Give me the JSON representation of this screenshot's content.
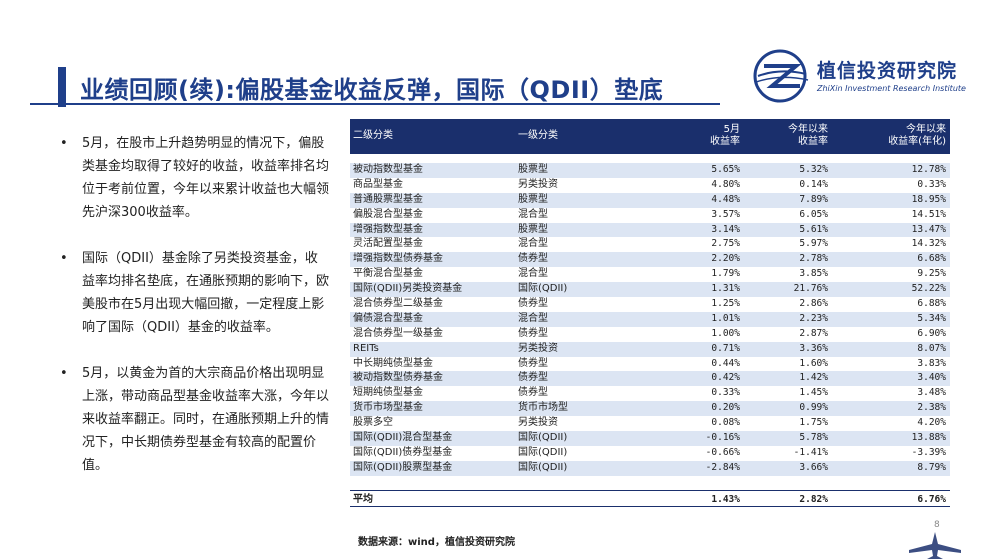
{
  "header": {
    "title": "业绩回顾(续):偏股基金收益反弹，国际（QDII）垫底"
  },
  "logo": {
    "name": "植信投资研究院",
    "subtitle": "ZhiXin Investment Research Institute",
    "icon": "zhixin-logo-icon"
  },
  "bullets": [
    "5月，在股市上升趋势明显的情况下，偏股类基金均取得了较好的收益，收益率排名均位于考前位置，今年以来累计收益也大幅领先沪深300收益率。",
    "国际（QDII）基金除了另类投资基金，收益率均排名垫底，在通胀预期的影响下，欧美股市在5月出现大幅回撤，一定程度上影响了国际（QDII）基金的收益率。",
    "5月，以黄金为首的大宗商品价格出现明显上涨，带动商品型基金收益率大涨，今年以来收益率翻正。同时，在通胀预期上升的情况下，中长期债券型基金有较高的配置价值。"
  ],
  "table": {
    "headers": {
      "col1": "二级分类",
      "col2": "一级分类",
      "col3_line1": "5月",
      "col3_line2": "收益率",
      "col4_line1": "今年以来",
      "col4_line2": "收益率",
      "col5_line1": "今年以来",
      "col5_line2": "收益率(年化)"
    },
    "rows": [
      [
        "被动指数型基金",
        "股票型",
        "5.65%",
        "5.32%",
        "12.78%"
      ],
      [
        "商品型基金",
        "另类投资",
        "4.80%",
        "0.14%",
        "0.33%"
      ],
      [
        "普通股票型基金",
        "股票型",
        "4.48%",
        "7.89%",
        "18.95%"
      ],
      [
        "偏股混合型基金",
        "混合型",
        "3.57%",
        "6.05%",
        "14.51%"
      ],
      [
        "增强指数型基金",
        "股票型",
        "3.14%",
        "5.61%",
        "13.47%"
      ],
      [
        "灵活配置型基金",
        "混合型",
        "2.75%",
        "5.97%",
        "14.32%"
      ],
      [
        "增强指数型债券基金",
        "债券型",
        "2.20%",
        "2.78%",
        "6.68%"
      ],
      [
        "平衡混合型基金",
        "混合型",
        "1.79%",
        "3.85%",
        "9.25%"
      ],
      [
        "国际(QDII)另类投资基金",
        "国际(QDII)",
        "1.31%",
        "21.76%",
        "52.22%"
      ],
      [
        "混合债券型二级基金",
        "债券型",
        "1.25%",
        "2.86%",
        "6.88%"
      ],
      [
        "偏债混合型基金",
        "混合型",
        "1.01%",
        "2.23%",
        "5.34%"
      ],
      [
        "混合债券型一级基金",
        "债券型",
        "1.00%",
        "2.87%",
        "6.90%"
      ],
      [
        "REITs",
        "另类投资",
        "0.71%",
        "3.36%",
        "8.07%"
      ],
      [
        "中长期纯债型基金",
        "债券型",
        "0.44%",
        "1.60%",
        "3.83%"
      ],
      [
        "被动指数型债券基金",
        "债券型",
        "0.42%",
        "1.42%",
        "3.40%"
      ],
      [
        "短期纯债型基金",
        "债券型",
        "0.33%",
        "1.45%",
        "3.48%"
      ],
      [
        "货币市场型基金",
        "货币市场型",
        "0.20%",
        "0.99%",
        "2.38%"
      ],
      [
        "股票多空",
        "另类投资",
        "0.08%",
        "1.75%",
        "4.20%"
      ],
      [
        "国际(QDII)混合型基金",
        "国际(QDII)",
        "-0.16%",
        "5.78%",
        "13.88%"
      ],
      [
        "国际(QDII)债券型基金",
        "国际(QDII)",
        "-0.66%",
        "-1.41%",
        "-3.39%"
      ],
      [
        "国际(QDII)股票型基金",
        "国际(QDII)",
        "-2.84%",
        "3.66%",
        "8.79%"
      ]
    ],
    "average": [
      "平均",
      "",
      "1.43%",
      "2.82%",
      "6.76%"
    ]
  },
  "footer": {
    "source": "数据来源：wind，植信投资研究院",
    "page": "8"
  },
  "colors": {
    "brand": "#1f3f8a",
    "header_bg": "#1a2f6c",
    "row_alt": "#dce5f3"
  }
}
